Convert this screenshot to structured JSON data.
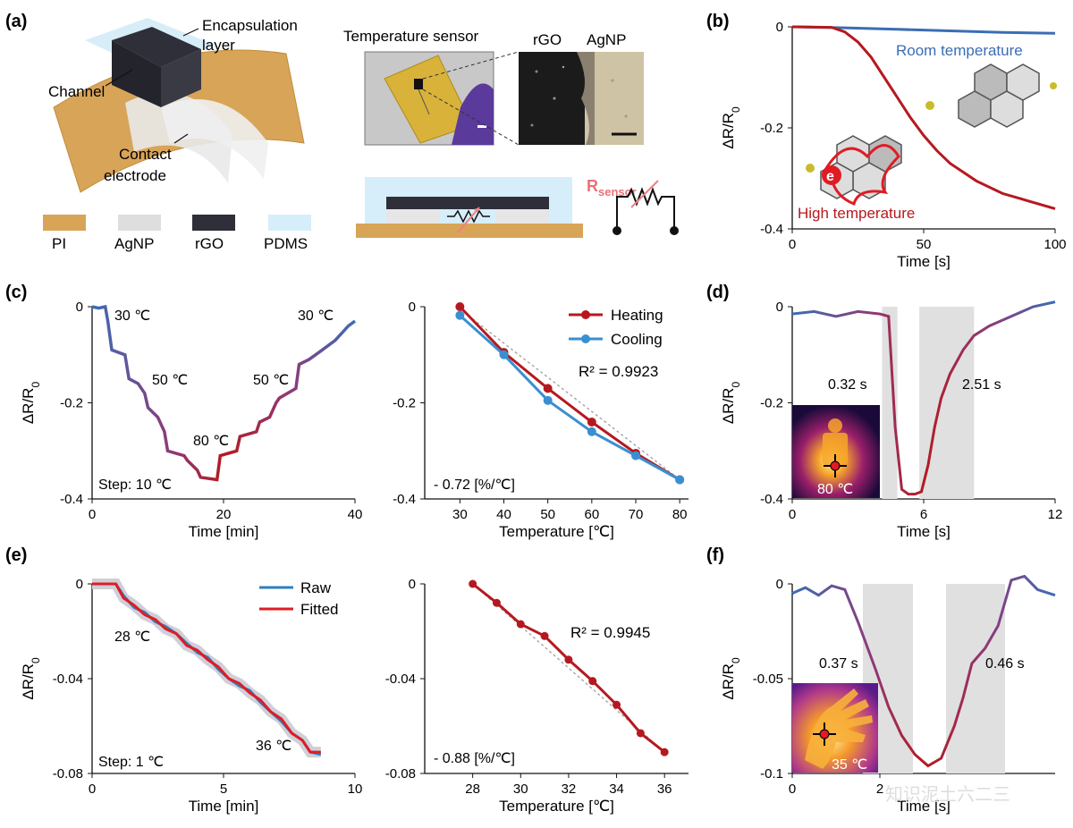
{
  "figure": {
    "panel_labels": [
      "(a)",
      "(b)",
      "(c)",
      "(d)",
      "(e)",
      "(f)"
    ],
    "watermark": "知识泥土六二三"
  },
  "panel_a": {
    "labels": {
      "encapsulation": [
        "Encapsulation",
        "layer"
      ],
      "channel": "Channel",
      "contact": [
        "Contact",
        "electrode"
      ],
      "temp_sensor": "Temperature sensor",
      "rgo": "rGO",
      "agnp": "AgNP",
      "rsensor": "R",
      "rsensor_sub": "sensor"
    },
    "legend": [
      {
        "name": "PI",
        "color": "#d8a458"
      },
      {
        "name": "AgNP",
        "color": "#dedede"
      },
      {
        "name": "rGO",
        "color": "#2f2f3a"
      },
      {
        "name": "PDMS",
        "color": "#d6eef9"
      }
    ]
  },
  "chart_data": [
    {
      "id": "b",
      "type": "line",
      "xlabel": "Time [s]",
      "ylabel": "ΔR/R0",
      "xlim": [
        0,
        100
      ],
      "ylim": [
        -0.4,
        0
      ],
      "xticks": [
        "0",
        "50",
        "100"
      ],
      "yticks": [
        "0",
        "-0.2",
        "-0.4"
      ],
      "series": [
        {
          "name": "Room temperature",
          "color": "#3b6db5",
          "x": [
            0,
            20,
            40,
            60,
            80,
            100
          ],
          "y": [
            0,
            -0.002,
            -0.005,
            -0.008,
            -0.011,
            -0.013
          ]
        },
        {
          "name": "High temperature",
          "color": "#b5191f",
          "x": [
            0,
            15,
            20,
            25,
            30,
            35,
            40,
            45,
            50,
            55,
            60,
            70,
            80,
            90,
            100
          ],
          "y": [
            0,
            -0.001,
            -0.01,
            -0.03,
            -0.06,
            -0.1,
            -0.14,
            -0.18,
            -0.215,
            -0.245,
            -0.27,
            -0.305,
            -0.33,
            -0.345,
            -0.36
          ]
        }
      ]
    },
    {
      "id": "c1",
      "type": "line",
      "xlabel": "Time [min]",
      "ylabel": "ΔR/R0",
      "xlim": [
        0,
        40
      ],
      "ylim": [
        -0.4,
        0
      ],
      "xticks": [
        "0",
        "20",
        "40"
      ],
      "yticks": [
        "0",
        "-0.2",
        "-0.4"
      ],
      "annotations": [
        "30 ℃",
        "50 ℃",
        "80 ℃",
        "50 ℃",
        "30 ℃",
        "Step: 10 ℃"
      ],
      "series": [
        {
          "x": [
            0,
            1,
            2,
            2.4,
            3,
            5,
            5.6,
            7,
            8,
            8.5,
            10,
            11,
            11.5,
            14,
            14.5,
            16,
            16.5,
            19,
            19.5,
            22,
            22.5,
            25,
            25.5,
            27,
            28,
            28.5,
            31,
            31.5,
            33,
            34,
            35,
            37,
            39,
            40
          ],
          "y": [
            0,
            -0.003,
            0,
            -0.03,
            -0.09,
            -0.1,
            -0.15,
            -0.16,
            -0.18,
            -0.21,
            -0.23,
            -0.26,
            -0.3,
            -0.31,
            -0.32,
            -0.34,
            -0.355,
            -0.36,
            -0.31,
            -0.3,
            -0.27,
            -0.26,
            -0.24,
            -0.23,
            -0.2,
            -0.19,
            -0.17,
            -0.12,
            -0.11,
            -0.1,
            -0.09,
            -0.07,
            -0.04,
            -0.03
          ]
        }
      ]
    },
    {
      "id": "c2",
      "type": "line",
      "xlabel": "Temperature [℃]",
      "ylabel": "",
      "xlim": [
        22,
        82
      ],
      "ylim": [
        -0.4,
        0
      ],
      "xticks": [
        "30",
        "40",
        "50",
        "60",
        "70",
        "80"
      ],
      "yticks": [
        "0",
        "-0.2",
        "-0.4"
      ],
      "r2": "R² = 0.9923",
      "slope": "- 0.72 [%/℃]",
      "series": [
        {
          "name": "Heating",
          "color": "#b5191f",
          "x": [
            30,
            40,
            50,
            60,
            70,
            80
          ],
          "y": [
            0,
            -0.095,
            -0.17,
            -0.24,
            -0.305,
            -0.36
          ]
        },
        {
          "name": "Cooling",
          "color": "#3a8fd1",
          "x": [
            30,
            40,
            50,
            60,
            70,
            80
          ],
          "y": [
            -0.018,
            -0.1,
            -0.195,
            -0.26,
            -0.31,
            -0.36
          ]
        }
      ]
    },
    {
      "id": "d",
      "type": "line",
      "xlabel": "Time [s]",
      "ylabel": "ΔR/R0",
      "xlim": [
        0,
        12
      ],
      "ylim": [
        -0.4,
        0
      ],
      "xticks": [
        "0",
        "6",
        "12"
      ],
      "yticks": [
        "0",
        "-0.2",
        "-0.4"
      ],
      "annotations": [
        "0.32 s",
        "2.51 s",
        "80 ℃"
      ],
      "series": [
        {
          "x": [
            0,
            1,
            2,
            3,
            4,
            4.4,
            4.7,
            5,
            5.3,
            5.6,
            5.9,
            6.2,
            6.5,
            6.8,
            7.2,
            7.8,
            8.3,
            9,
            10,
            11,
            12
          ],
          "y": [
            -0.015,
            -0.01,
            -0.02,
            -0.01,
            -0.015,
            -0.02,
            -0.25,
            -0.38,
            -0.39,
            -0.39,
            -0.385,
            -0.33,
            -0.25,
            -0.19,
            -0.14,
            -0.09,
            -0.06,
            -0.04,
            -0.02,
            0,
            0.01
          ]
        }
      ]
    },
    {
      "id": "e1",
      "type": "line",
      "xlabel": "Time [min]",
      "ylabel": "ΔR/R0",
      "xlim": [
        0,
        10
      ],
      "ylim": [
        -0.08,
        0
      ],
      "xticks": [
        "0",
        "5",
        "10"
      ],
      "yticks": [
        "0",
        "-0.04",
        "-0.08"
      ],
      "annotations": [
        "28 ℃",
        "36 ℃",
        "Step: 1 ℃"
      ],
      "series": [
        {
          "name": "Raw",
          "color": "#2f7fc0",
          "x": [
            0,
            0.9,
            1.2,
            1.6,
            2,
            2.4,
            2.8,
            3.2,
            3.6,
            4,
            4.4,
            4.8,
            5.2,
            5.6,
            6,
            6.4,
            6.8,
            7.2,
            7.6,
            8,
            8.3,
            8.7
          ],
          "y": [
            0,
            0,
            -0.005,
            -0.01,
            -0.012,
            -0.016,
            -0.018,
            -0.021,
            -0.025,
            -0.029,
            -0.031,
            -0.036,
            -0.04,
            -0.043,
            -0.045,
            -0.05,
            -0.054,
            -0.058,
            -0.063,
            -0.066,
            -0.071,
            -0.072
          ]
        },
        {
          "name": "Fitted",
          "color": "#e01b24",
          "x": [
            0,
            0.9,
            1.2,
            1.6,
            2,
            2.4,
            2.8,
            3.2,
            3.6,
            4,
            4.4,
            4.8,
            5.2,
            5.6,
            6,
            6.4,
            6.8,
            7.2,
            7.6,
            8,
            8.3,
            8.7
          ],
          "y": [
            0,
            0,
            -0.006,
            -0.009,
            -0.013,
            -0.015,
            -0.019,
            -0.021,
            -0.026,
            -0.028,
            -0.032,
            -0.035,
            -0.04,
            -0.042,
            -0.046,
            -0.049,
            -0.054,
            -0.057,
            -0.063,
            -0.066,
            -0.071,
            -0.071
          ]
        }
      ]
    },
    {
      "id": "e2",
      "type": "line",
      "xlabel": "Temperature [℃]",
      "ylabel": "",
      "xlim": [
        26,
        37
      ],
      "ylim": [
        -0.08,
        0
      ],
      "xticks": [
        "28",
        "30",
        "32",
        "34",
        "36"
      ],
      "yticks": [
        "0",
        "-0.04",
        "-0.08"
      ],
      "r2": "R² = 0.9945",
      "slope": "- 0.88 [%/℃]",
      "series": [
        {
          "color": "#b5191f",
          "x": [
            28,
            29,
            30,
            31,
            32,
            33,
            34,
            35,
            36
          ],
          "y": [
            0,
            -0.008,
            -0.017,
            -0.022,
            -0.032,
            -0.041,
            -0.051,
            -0.063,
            -0.071
          ]
        }
      ]
    },
    {
      "id": "f",
      "type": "line",
      "xlabel": "Time [s]",
      "ylabel": "ΔR/R0",
      "xlim": [
        0,
        6
      ],
      "ylim": [
        -0.1,
        0
      ],
      "xticks": [
        "0",
        "2"
      ],
      "yticks": [
        "0",
        "-0.05",
        "-0.1"
      ],
      "annotations": [
        "0.37 s",
        "0.46 s",
        "35 ℃"
      ],
      "series": [
        {
          "x": [
            0,
            0.3,
            0.6,
            0.9,
            1.2,
            1.5,
            1.9,
            2.2,
            2.5,
            2.8,
            3.1,
            3.4,
            3.7,
            3.9,
            4.1,
            4.4,
            4.7,
            5,
            5.3,
            5.6,
            6
          ],
          "y": [
            -0.005,
            -0.002,
            -0.006,
            -0.001,
            -0.003,
            -0.02,
            -0.045,
            -0.065,
            -0.08,
            -0.09,
            -0.096,
            -0.092,
            -0.075,
            -0.06,
            -0.042,
            -0.034,
            -0.022,
            0.002,
            0.004,
            -0.003,
            -0.006
          ]
        }
      ]
    }
  ]
}
